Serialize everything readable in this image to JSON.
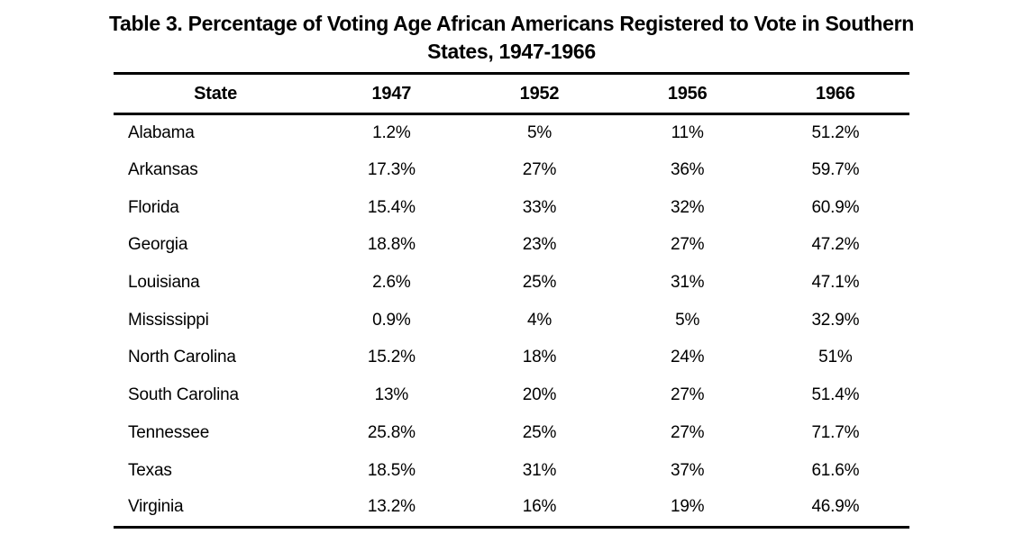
{
  "page": {
    "title_line1": "Table 3. Percentage of Voting Age African Americans Registered to Vote in Southern",
    "title_line2": "States, 1947-1966"
  },
  "colors": {
    "background": "#ffffff",
    "text": "#000000",
    "rule": "#000000"
  },
  "chart_data": {
    "type": "table",
    "title": "Table 3. Percentage of Voting Age African Americans Registered to Vote in Southern States, 1947-1966",
    "columns": [
      "State",
      "1947",
      "1952",
      "1956",
      "1966"
    ],
    "rows": [
      [
        "Alabama",
        "1.2%",
        "5%",
        "11%",
        "51.2%"
      ],
      [
        "Arkansas",
        "17.3%",
        "27%",
        "36%",
        "59.7%"
      ],
      [
        "Florida",
        "15.4%",
        "33%",
        "32%",
        "60.9%"
      ],
      [
        "Georgia",
        "18.8%",
        "23%",
        "27%",
        "47.2%"
      ],
      [
        "Louisiana",
        "2.6%",
        "25%",
        "31%",
        "47.1%"
      ],
      [
        "Mississippi",
        "0.9%",
        "4%",
        "5%",
        "32.9%"
      ],
      [
        "North Carolina",
        "15.2%",
        "18%",
        "24%",
        "51%"
      ],
      [
        "South Carolina",
        "13%",
        "20%",
        "27%",
        "51.4%"
      ],
      [
        "Tennessee",
        "25.8%",
        "25%",
        "27%",
        "71.7%"
      ],
      [
        "Texas",
        "18.5%",
        "31%",
        "37%",
        "61.6%"
      ],
      [
        "Virginia",
        "13.2%",
        "16%",
        "19%",
        "46.9%"
      ]
    ]
  }
}
